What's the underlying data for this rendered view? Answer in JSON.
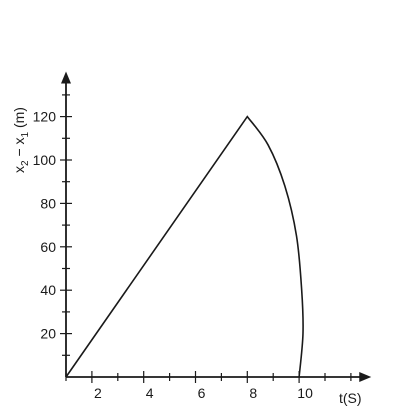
{
  "chart_data": {
    "type": "line",
    "xlabel": "t(S)",
    "ylabel_parts": [
      "x",
      "2",
      " − x",
      "1",
      " (m)"
    ],
    "x_tick_labels": [
      2,
      4,
      6,
      8,
      10
    ],
    "y_tick_labels": [
      20,
      40,
      60,
      80,
      100,
      120
    ],
    "x_minor_ticks": [
      1,
      2,
      3,
      4,
      5,
      6,
      7,
      8,
      9,
      10,
      11,
      12
    ],
    "y_minor_ticks": [
      10,
      20,
      30,
      40,
      50,
      60,
      70,
      80,
      90,
      100,
      110,
      120,
      130
    ],
    "xlim": [
      1,
      12.4
    ],
    "ylim": [
      0,
      138
    ],
    "grid": false,
    "series": [
      {
        "values": [
          {
            "x": 1,
            "y": 0
          },
          {
            "x": 8,
            "y": 120
          },
          {
            "x": 8.8,
            "y": 107
          },
          {
            "x": 9.45,
            "y": 88
          },
          {
            "x": 9.9,
            "y": 65
          },
          {
            "x": 10.1,
            "y": 40
          },
          {
            "x": 10.15,
            "y": 20
          },
          {
            "x": 10.0,
            "y": 0
          }
        ]
      }
    ]
  },
  "colors": {
    "ink": "#1a1a1a"
  }
}
